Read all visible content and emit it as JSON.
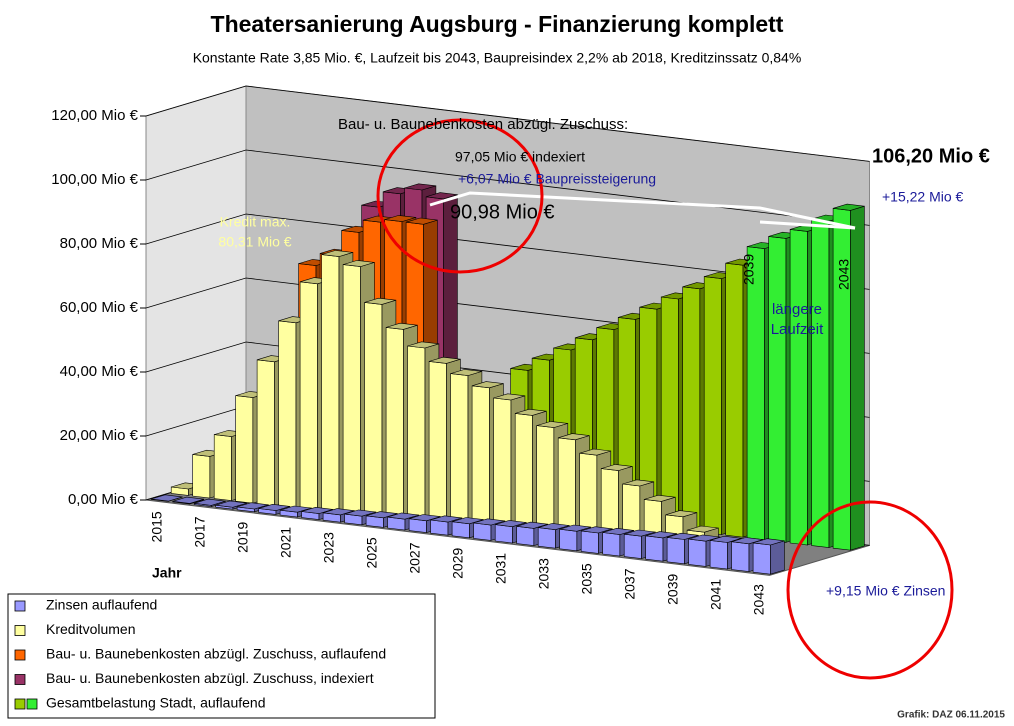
{
  "chart_data": {
    "type": "bar3d",
    "title": "Theatersanierung Augsburg - Finanzierung komplett",
    "subtitle": "Konstante Rate 3,85 Mio. €, Laufzeit bis 2043, Baupreisindex 2,2% ab 2018, Kreditzinssatz 0,84%",
    "x_label": "Jahr",
    "footer": "Grafik: DAZ 06.11.2015",
    "categories": [
      "2015",
      null,
      "2017",
      null,
      "2019",
      null,
      "2021",
      null,
      "2023",
      null,
      "2025",
      null,
      "2027",
      null,
      "2029",
      null,
      "2031",
      null,
      "2033",
      null,
      "2035",
      null,
      "2037",
      null,
      "2039",
      null,
      "2041",
      null,
      "2043"
    ],
    "ylim": [
      0,
      120
    ],
    "yticks": [
      {
        "value": 0,
        "label": "0,00 Mio €"
      },
      {
        "value": 20,
        "label": "20,00 Mio €"
      },
      {
        "value": 40,
        "label": "40,00 Mio €"
      },
      {
        "value": 60,
        "label": "60,00 Mio €"
      },
      {
        "value": 80,
        "label": "80,00 Mio €"
      },
      {
        "value": 100,
        "label": "100,00 Mio €"
      },
      {
        "value": 120,
        "label": "120,00 Mio €"
      }
    ],
    "grid": true,
    "series": [
      {
        "name": "Zinsen auflaufend",
        "color": "#9999ff",
        "values": [
          0.1,
          0.2,
          0.4,
          0.6,
          0.9,
          1.2,
          1.5,
          1.9,
          2.3,
          2.7,
          3.0,
          3.4,
          3.7,
          4.1,
          4.4,
          4.8,
          5.1,
          5.4,
          5.8,
          6.1,
          6.4,
          6.7,
          7.0,
          7.3,
          7.6,
          7.9,
          8.3,
          8.7,
          9.15
        ]
      },
      {
        "name": "Kreditvolumen",
        "color": "#ffffa0",
        "values": [
          2,
          13,
          20,
          33,
          45,
          58,
          71,
          80.31,
          78,
          67,
          60,
          55,
          51,
          48,
          45,
          42,
          38,
          35,
          32,
          28,
          24,
          20,
          16,
          12,
          8,
          4,
          1,
          null,
          null
        ]
      },
      {
        "name": "Bau- u. Baunebenkosten abzügl. Zuschuss, auflaufend",
        "color": "#ff6600",
        "values": [
          null,
          null,
          null,
          null,
          null,
          74,
          78,
          86,
          90,
          91,
          90.98,
          null,
          null,
          null,
          null,
          null,
          null,
          null,
          null,
          null,
          null,
          null,
          null,
          null,
          null,
          null,
          null,
          null,
          null
        ]
      },
      {
        "name": "Bau- u. Baunebenkosten abzügl. Zuschuss, indexiert",
        "color": "#993366",
        "values": [
          null,
          null,
          null,
          null,
          null,
          null,
          null,
          92,
          97,
          99,
          97.05,
          null,
          null,
          null,
          null,
          null,
          null,
          null,
          null,
          null,
          null,
          null,
          null,
          null,
          null,
          null,
          null,
          null,
          null
        ]
      },
      {
        "name": "Gesamtbelastung Stadt, auflaufend",
        "colors": [
          null,
          null,
          null,
          null,
          null,
          null,
          null,
          null,
          null,
          null,
          null,
          null,
          null,
          "#99cc00",
          "#99cc00",
          "#99cc00",
          "#99cc00",
          "#99cc00",
          "#99cc00",
          "#99cc00",
          "#99cc00",
          "#99cc00",
          "#99cc00",
          "#99cc00",
          "#33ee33",
          "#33ee33",
          "#33ee33",
          "#33ee33",
          "#33ee33"
        ],
        "values": [
          null,
          null,
          null,
          null,
          null,
          null,
          null,
          null,
          null,
          null,
          null,
          null,
          null,
          44,
          48,
          52,
          56,
          60,
          64,
          68,
          72,
          76,
          80,
          85,
          91,
          95,
          98,
          102,
          106.2
        ]
      }
    ],
    "annotations": [
      "Bau- u. Baunebenkosten abzügl. Zuschuss:",
      "97,05 Mio €  indexiert",
      "+6,07 Mio € Baupreissteigerung",
      "90,98 Mio €",
      "Kredit max.",
      "80,31 Mio €",
      "106,20 Mio €",
      "+15,22 Mio €",
      "längere",
      "Laufzeit",
      "+9,15 Mio € Zinsen",
      "2039",
      "2043"
    ]
  }
}
